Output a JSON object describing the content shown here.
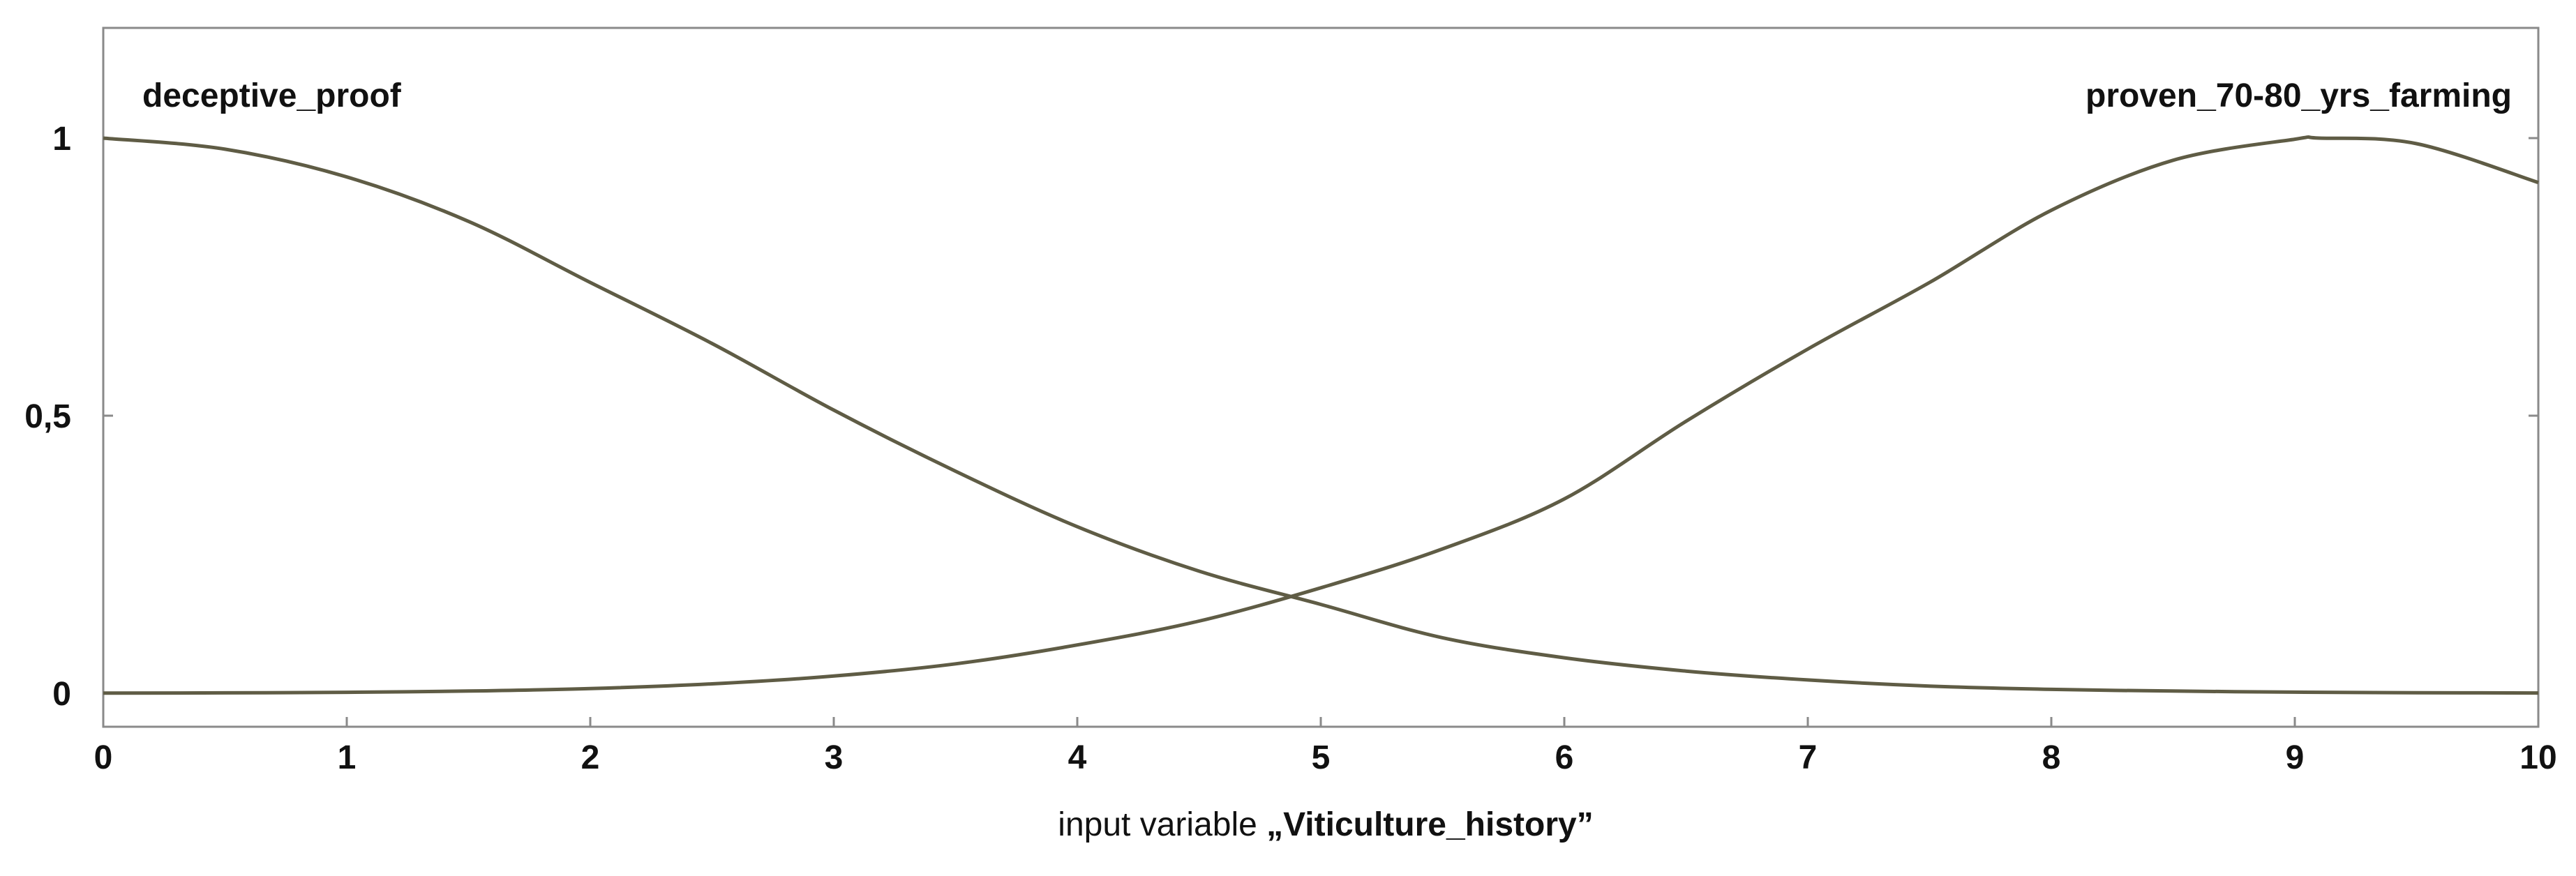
{
  "chart_data": {
    "type": "line",
    "title": "",
    "xlabel": {
      "prefix": "input variable ",
      "name": "„Viticulture_history”"
    },
    "ylabel": "",
    "xlim": [
      0,
      10
    ],
    "ylim": [
      0,
      1
    ],
    "x_ticks": [
      {
        "value": 0,
        "label": "0"
      },
      {
        "value": 1,
        "label": "1"
      },
      {
        "value": 2,
        "label": "2"
      },
      {
        "value": 3,
        "label": "3"
      },
      {
        "value": 4,
        "label": "4"
      },
      {
        "value": 5,
        "label": "5"
      },
      {
        "value": 6,
        "label": "6"
      },
      {
        "value": 7,
        "label": "7"
      },
      {
        "value": 8,
        "label": "8"
      },
      {
        "value": 9,
        "label": "9"
      },
      {
        "value": 10,
        "label": "10"
      }
    ],
    "y_ticks": [
      {
        "value": 0,
        "label": "0"
      },
      {
        "value": 0.5,
        "label": "0,5"
      },
      {
        "value": 1,
        "label": "1"
      }
    ],
    "grid": false,
    "series": [
      {
        "name": "deceptive_proof",
        "label_position": "top-left",
        "x": [
          0,
          0.5,
          1,
          1.5,
          2,
          2.5,
          3,
          3.5,
          4,
          4.5,
          5,
          5.5,
          6,
          6.5,
          7,
          7.5,
          8,
          8.5,
          9,
          9.5,
          10
        ],
        "y": [
          1.0,
          0.98,
          0.93,
          0.85,
          0.74,
          0.63,
          0.51,
          0.4,
          0.3,
          0.22,
          0.16,
          0.1,
          0.064,
          0.04,
          0.024,
          0.013,
          0.007,
          0.004,
          0.002,
          0.001,
          0.0005
        ]
      },
      {
        "name": "proven_70-80_yrs_farming",
        "label_position": "top-right",
        "x": [
          0,
          0.5,
          1,
          1.5,
          2,
          2.5,
          3,
          3.5,
          4,
          4.5,
          5,
          5.5,
          6,
          6.5,
          7,
          7.5,
          8,
          8.5,
          9,
          9.1,
          9.5,
          10
        ],
        "y": [
          0.0003,
          0.0007,
          0.0017,
          0.004,
          0.0085,
          0.017,
          0.031,
          0.053,
          0.087,
          0.13,
          0.19,
          0.26,
          0.35,
          0.49,
          0.62,
          0.74,
          0.87,
          0.96,
          0.998,
          1.0,
          0.99,
          0.92
        ]
      }
    ]
  }
}
